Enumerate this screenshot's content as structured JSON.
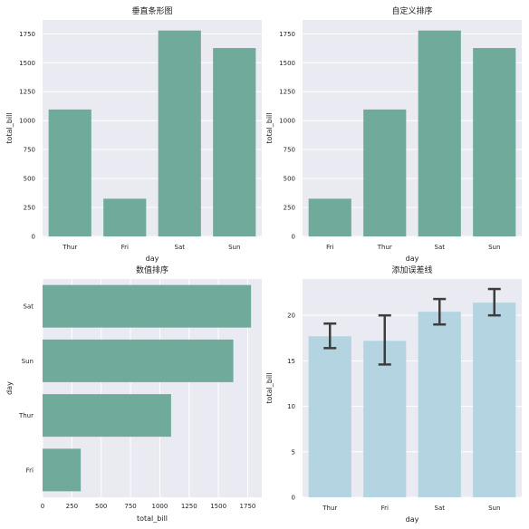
{
  "chart_data": [
    {
      "type": "bar",
      "orientation": "vertical",
      "title": "垂直条形图",
      "xlabel": "day",
      "ylabel": "total_bill",
      "categories": [
        "Thur",
        "Fri",
        "Sat",
        "Sun"
      ],
      "values": [
        1096.33,
        325.88,
        1778.4,
        1627.16
      ],
      "ylim": [
        0,
        1870
      ],
      "yticks": [
        0,
        250,
        500,
        750,
        1000,
        1250,
        1500,
        1750
      ],
      "grid": true,
      "bar_color": "#6faa9b"
    },
    {
      "type": "bar",
      "orientation": "vertical",
      "title": "自定义排序",
      "xlabel": "day",
      "ylabel": "total_bill",
      "categories": [
        "Fri",
        "Thur",
        "Sat",
        "Sun"
      ],
      "values": [
        325.88,
        1096.33,
        1778.4,
        1627.16
      ],
      "ylim": [
        0,
        1870
      ],
      "yticks": [
        0,
        250,
        500,
        750,
        1000,
        1250,
        1500,
        1750
      ],
      "grid": true,
      "bar_color": "#6faa9b"
    },
    {
      "type": "bar",
      "orientation": "horizontal",
      "title": "数值排序",
      "xlabel": "total_bill",
      "ylabel": "day",
      "categories": [
        "Sat",
        "Sun",
        "Thur",
        "Fri"
      ],
      "values": [
        1778.4,
        1627.16,
        1096.33,
        325.88
      ],
      "xlim": [
        0,
        1870
      ],
      "xticks": [
        0,
        250,
        500,
        750,
        1000,
        1250,
        1500,
        1750
      ],
      "grid": true,
      "bar_color": "#6faa9b"
    },
    {
      "type": "bar",
      "orientation": "vertical",
      "title": "添加误差线",
      "xlabel": "day",
      "ylabel": "total_bill",
      "categories": [
        "Thur",
        "Fri",
        "Sat",
        "Sun"
      ],
      "values": [
        17.7,
        17.2,
        20.4,
        21.4
      ],
      "error_low": [
        16.4,
        14.6,
        19.0,
        20.0
      ],
      "error_high": [
        19.1,
        20.0,
        21.8,
        22.9
      ],
      "ylim": [
        0,
        24
      ],
      "yticks": [
        0,
        5,
        10,
        15,
        20
      ],
      "grid": true,
      "bar_color": "#b3d4e0",
      "errorbar_color": "#3d3d3d"
    }
  ]
}
